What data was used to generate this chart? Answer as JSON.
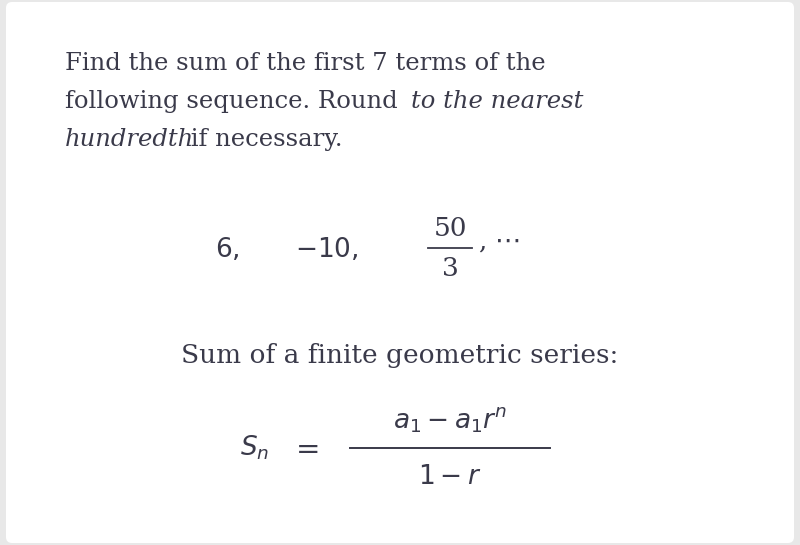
{
  "bg_color": "#e8e8e8",
  "card_color": "#ffffff",
  "text_color": "#3a3a4a",
  "font_size_text": 17.5,
  "font_size_seq": 19,
  "font_size_formula": 19,
  "font_size_sum_label": 19,
  "line1": "Find the sum of the first 7 terms of the",
  "line2_normal": "following sequence. Round ",
  "line2_italic": "to the nearest",
  "line3_italic": "hundredth",
  "line3_normal": " if necessary.",
  "sum_label": "Sum of a finite geometric series:"
}
